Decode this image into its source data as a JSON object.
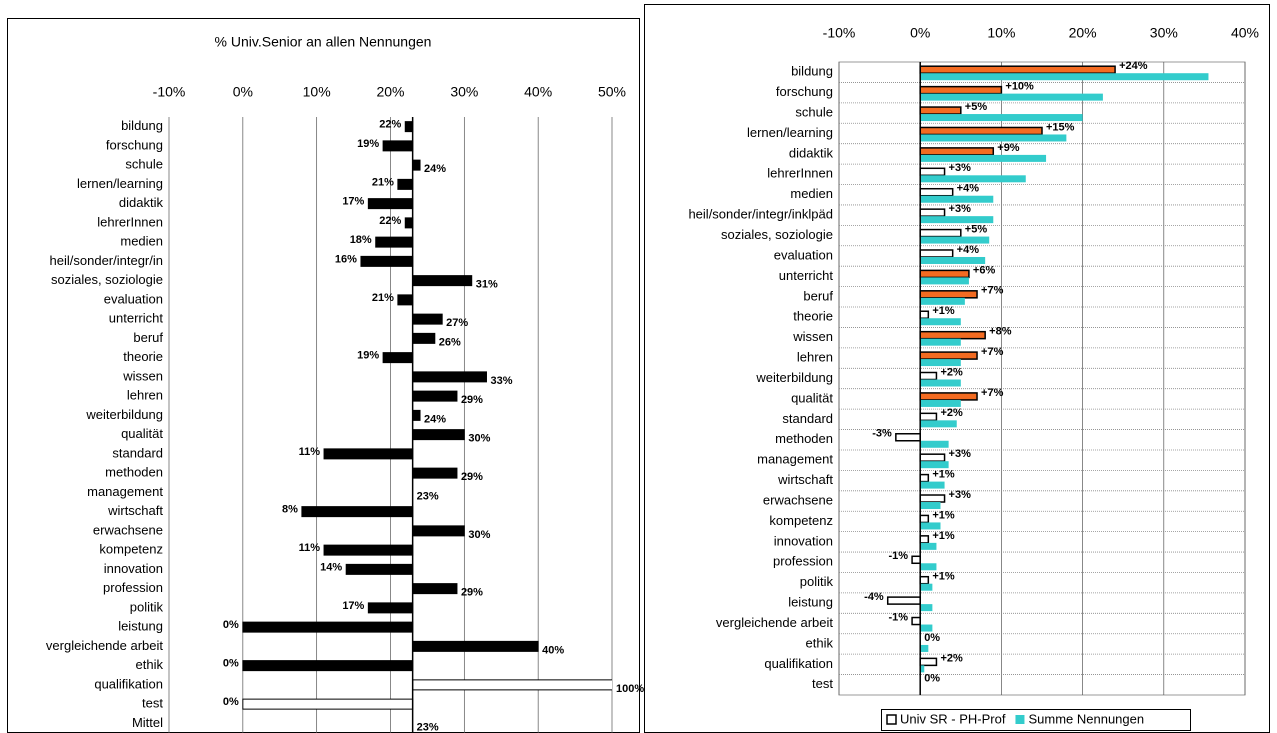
{
  "chart_data": [
    {
      "type": "bar",
      "orientation": "horizontal",
      "title": "% Univ.Senior an allen Nennungen",
      "categories": [
        "bildung",
        "forschung",
        "schule",
        "lernen/learning",
        "didaktik",
        "lehrerInnen",
        "medien",
        "heil/sonder/integr/in",
        "soziales, soziologie",
        "evaluation",
        "unterricht",
        "beruf",
        "theorie",
        "wissen",
        "lehren",
        "weiterbildung",
        "qualität",
        "standard",
        "methoden",
        "management",
        "wirtschaft",
        "erwachsene",
        "kompetenz",
        "innovation",
        "profession",
        "politik",
        "leistung",
        "vergleichende arbeit",
        "ethik",
        "qualifikation",
        "test",
        "Mittel"
      ],
      "values": [
        22,
        19,
        24,
        21,
        17,
        22,
        18,
        16,
        31,
        21,
        27,
        26,
        19,
        33,
        29,
        24,
        30,
        11,
        29,
        23,
        8,
        30,
        11,
        14,
        29,
        17,
        0,
        40,
        0,
        100,
        0,
        23
      ],
      "value_labels": [
        "22%",
        "19%",
        "24%",
        "21%",
        "17%",
        "22%",
        "18%",
        "16%",
        "31%",
        "21%",
        "27%",
        "26%",
        "19%",
        "33%",
        "29%",
        "24%",
        "30%",
        "11%",
        "29%",
        "23%",
        "8%",
        "30%",
        "11%",
        "14%",
        "29%",
        "17%",
        "0%",
        "40%",
        "0%",
        "100%",
        "0%",
        "23%"
      ],
      "colors": [
        "#000000",
        "#000000",
        "#000000",
        "#000000",
        "#000000",
        "#000000",
        "#000000",
        "#000000",
        "#000000",
        "#000000",
        "#000000",
        "#000000",
        "#000000",
        "#000000",
        "#000000",
        "#000000",
        "#000000",
        "#000000",
        "#000000",
        "#000000",
        "#000000",
        "#000000",
        "#000000",
        "#000000",
        "#000000",
        "#000000",
        "#000000",
        "#000000",
        "#000000",
        "#ffffff",
        "#ffffff",
        "#000000"
      ],
      "base": 23,
      "xlim": [
        -10,
        50
      ],
      "xticks": [
        {
          "value": -10,
          "label": "-10%"
        },
        {
          "value": 0,
          "label": "0%"
        },
        {
          "value": 10,
          "label": "10%"
        },
        {
          "value": 20,
          "label": "20%"
        },
        {
          "value": 30,
          "label": "30%"
        },
        {
          "value": 40,
          "label": "40%"
        },
        {
          "value": 50,
          "label": "50%"
        }
      ],
      "grid": true
    },
    {
      "type": "bar",
      "orientation": "horizontal",
      "categories": [
        "bildung",
        "forschung",
        "schule",
        "lernen/learning",
        "didaktik",
        "lehrerInnen",
        "medien",
        "heil/sonder/integr/inklpäd",
        "soziales, soziologie",
        "evaluation",
        "unterricht",
        "beruf",
        "theorie",
        "wissen",
        "lehren",
        "weiterbildung",
        "qualität",
        "standard",
        "methoden",
        "management",
        "wirtschaft",
        "erwachsene",
        "kompetenz",
        "innovation",
        "profession",
        "politik",
        "leistung",
        "vergleichende arbeit",
        "ethik",
        "qualifikation",
        "test"
      ],
      "series": [
        {
          "name": "Univ SR - PH-Prof",
          "color": "#ffffff",
          "edgecolor": "#000000",
          "values": [
            24,
            10,
            5,
            15,
            9,
            3,
            4,
            3,
            5,
            4,
            6,
            7,
            1,
            8,
            7,
            2,
            7,
            2,
            -3,
            3,
            1,
            3,
            1,
            1,
            -1,
            1,
            -4,
            -1,
            0,
            2,
            0
          ],
          "value_labels": [
            "+24%",
            "+10%",
            "+5%",
            "+15%",
            "+9%",
            "+3%",
            "+4%",
            "+3%",
            "+5%",
            "+4%",
            "+6%",
            "+7%",
            "+1%",
            "+8%",
            "+7%",
            "+2%",
            "+7%",
            "+2%",
            "-3%",
            "+3%",
            "+1%",
            "+3%",
            "+1%",
            "+1%",
            "-1%",
            "+1%",
            "-4%",
            "-1%",
            "0%",
            "+2%",
            "0%"
          ],
          "colors": [
            "#f36b21",
            "#f36b21",
            "#f36b21",
            "#f36b21",
            "#f36b21",
            "#ffffff",
            "#ffffff",
            "#ffffff",
            "#ffffff",
            "#ffffff",
            "#f36b21",
            "#f36b21",
            "#ffffff",
            "#f36b21",
            "#f36b21",
            "#ffffff",
            "#f36b21",
            "#ffffff",
            "#ffffff",
            "#ffffff",
            "#ffffff",
            "#ffffff",
            "#ffffff",
            "#ffffff",
            "#ffffff",
            "#ffffff",
            "#ffffff",
            "#ffffff",
            "#ffffff",
            "#ffffff",
            "#ffffff"
          ]
        },
        {
          "name": "Summe Nennungen",
          "color": "#33cccc",
          "values": [
            35.5,
            22.5,
            20,
            18,
            15.5,
            13,
            9,
            9,
            8.5,
            8,
            6,
            5.5,
            5,
            5,
            5,
            5,
            5,
            4.5,
            3.5,
            3.5,
            3,
            2.5,
            2.5,
            2,
            2,
            1.5,
            1.5,
            1.5,
            1,
            0.5,
            0
          ]
        }
      ],
      "xlim": [
        -10,
        40
      ],
      "xticks": [
        {
          "value": -10,
          "label": "-10%"
        },
        {
          "value": 0,
          "label": "0%"
        },
        {
          "value": 10,
          "label": "10%"
        },
        {
          "value": 20,
          "label": "20%"
        },
        {
          "value": 30,
          "label": "30%"
        },
        {
          "value": 40,
          "label": "40%"
        }
      ],
      "grid": true,
      "legend": "bottom"
    }
  ]
}
